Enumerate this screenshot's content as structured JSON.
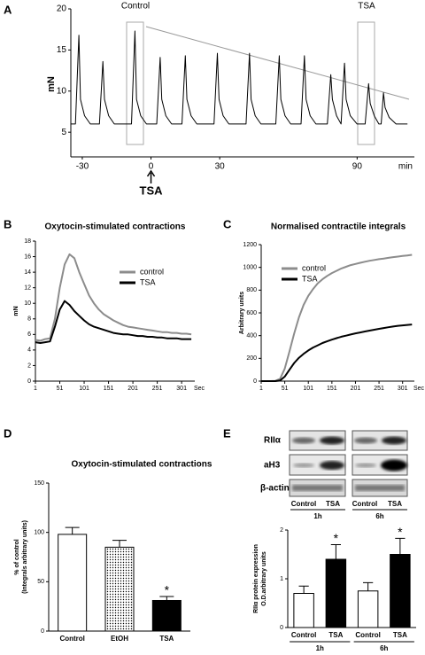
{
  "panels": [
    "A",
    "B",
    "C",
    "D",
    "E"
  ],
  "chart_data": [
    {
      "type": "line",
      "ylabel": "mN",
      "x_unit": "min",
      "annotations": [
        "Control",
        "TSA"
      ],
      "arrow_label": "TSA",
      "xlim": [
        -35,
        115
      ],
      "ylim": [
        2,
        20
      ],
      "xticks": [
        -30,
        0,
        30,
        90
      ],
      "yticks": [
        5,
        10,
        15,
        20
      ],
      "x": [
        -35,
        -33,
        -31.5,
        -30.8,
        -29,
        -26.5,
        -22.5,
        -21,
        -20.3,
        -18.5,
        -16,
        -8.5,
        -7,
        -6.3,
        -4.5,
        -2,
        2.5,
        4,
        4.7,
        6.5,
        9,
        13.5,
        15,
        15.7,
        17.5,
        20,
        27.5,
        29,
        29.7,
        31.5,
        34,
        41.5,
        43,
        43.7,
        45.5,
        48,
        54.5,
        56,
        56.7,
        58.5,
        61,
        65.5,
        67,
        67.7,
        69.5,
        72,
        77,
        78.5,
        79.2,
        81,
        83,
        84.5,
        85.2,
        87,
        90,
        93.5,
        95,
        95.7,
        97.5,
        99.5,
        100.5,
        101.5,
        102.2,
        104,
        107,
        112
      ],
      "series": [
        {
          "color": "#000000",
          "values": [
            6,
            6,
            16.8,
            9,
            7,
            6,
            6,
            13.6,
            9,
            7,
            6,
            6,
            17.3,
            9,
            7,
            6,
            6,
            14.1,
            9,
            7,
            6,
            6,
            14.3,
            9,
            7,
            6,
            6,
            14.6,
            9,
            7,
            6,
            6,
            14.6,
            9,
            7,
            6,
            6,
            14.3,
            9,
            7,
            6,
            6,
            14.3,
            9,
            7,
            6,
            6,
            12,
            9,
            7,
            6,
            13.4,
            9,
            7,
            6,
            6,
            10.9,
            8.5,
            7,
            6,
            6,
            9.8,
            8,
            6.8,
            6,
            6
          ]
        }
      ]
    },
    {
      "type": "line",
      "title": "Oxytocin-stimulated contractions",
      "ylabel": "mN",
      "x_unit": "Sec",
      "xlim": [
        1,
        328
      ],
      "ylim": [
        0,
        18
      ],
      "xticks": [
        1,
        51,
        101,
        151,
        201,
        251,
        301
      ],
      "yticks": [
        0,
        2,
        4,
        6,
        8,
        10,
        12,
        14,
        16,
        18
      ],
      "x": [
        1,
        11,
        21,
        31,
        41,
        51,
        61,
        71,
        81,
        91,
        101,
        111,
        121,
        131,
        141,
        151,
        161,
        171,
        181,
        191,
        201,
        211,
        221,
        231,
        241,
        251,
        261,
        271,
        281,
        291,
        301,
        311,
        321
      ],
      "series": [
        {
          "name": "control",
          "color": "#8c8c8c",
          "values": [
            5.3,
            5.2,
            5.4,
            5.5,
            8,
            12,
            15,
            16.3,
            15.8,
            14,
            12.5,
            11,
            10,
            9.2,
            8.6,
            8.2,
            7.8,
            7.5,
            7.2,
            7,
            6.9,
            6.8,
            6.7,
            6.6,
            6.5,
            6.4,
            6.3,
            6.3,
            6.2,
            6.2,
            6.1,
            6.1,
            6.0
          ]
        },
        {
          "name": "TSA",
          "color": "#000000",
          "values": [
            5,
            4.9,
            5,
            5.1,
            7,
            9.2,
            10.3,
            9.8,
            9,
            8.4,
            7.8,
            7.3,
            7,
            6.8,
            6.6,
            6.4,
            6.2,
            6.1,
            6,
            6,
            5.9,
            5.8,
            5.8,
            5.7,
            5.7,
            5.6,
            5.6,
            5.5,
            5.5,
            5.5,
            5.4,
            5.4,
            5.4
          ]
        }
      ]
    },
    {
      "type": "line",
      "title": "Normalised contractile integrals",
      "ylabel": "Arbitrary units",
      "x_unit": "Sec",
      "xlim": [
        1,
        326
      ],
      "ylim": [
        0,
        1200
      ],
      "xticks": [
        1,
        51,
        101,
        151,
        201,
        251,
        301
      ],
      "yticks": [
        0,
        200,
        400,
        600,
        800,
        1000,
        1200
      ],
      "x": [
        1,
        11,
        21,
        31,
        41,
        51,
        61,
        71,
        81,
        91,
        101,
        111,
        121,
        131,
        141,
        151,
        161,
        171,
        181,
        191,
        201,
        211,
        221,
        231,
        241,
        251,
        261,
        271,
        281,
        291,
        301,
        311,
        321
      ],
      "series": [
        {
          "name": "control",
          "color": "#8c8c8c",
          "values": [
            0,
            0,
            0,
            2,
            20,
            110,
            260,
            420,
            560,
            670,
            750,
            810,
            860,
            895,
            925,
            950,
            970,
            990,
            1005,
            1020,
            1030,
            1040,
            1050,
            1058,
            1065,
            1072,
            1078,
            1084,
            1090,
            1095,
            1100,
            1105,
            1110
          ]
        },
        {
          "name": "TSA",
          "color": "#000000",
          "values": [
            0,
            0,
            0,
            0,
            5,
            40,
            100,
            160,
            205,
            240,
            270,
            295,
            315,
            335,
            350,
            365,
            378,
            390,
            400,
            410,
            420,
            428,
            436,
            444,
            452,
            460,
            467,
            474,
            480,
            486,
            490,
            494,
            498
          ]
        }
      ]
    },
    {
      "type": "bar",
      "title": "Oxytocin-stimulated contractions",
      "ylabel": [
        "% of control",
        "(Integrals arbitrary units)"
      ],
      "categories": [
        "Control",
        "EtOH",
        "TSA"
      ],
      "values": [
        98,
        85,
        31
      ],
      "errors": [
        7,
        7,
        4
      ],
      "significance": [
        null,
        null,
        "*"
      ],
      "colors": [
        "#ffffff",
        "#ffffff",
        "#000000"
      ],
      "hatch": [
        null,
        "dots",
        null
      ],
      "ylim": [
        0,
        150
      ],
      "yticks": [
        0,
        50,
        100,
        150
      ]
    },
    {
      "type": "bar",
      "ylabel": [
        "RIIα  protein expression",
        "O.D.arbitrary units"
      ],
      "categories": [
        "Control",
        "TSA",
        "Control",
        "TSA"
      ],
      "groups": [
        "1h",
        "6h"
      ],
      "values": [
        0.7,
        1.4,
        0.75,
        1.5
      ],
      "errors": [
        0.15,
        0.3,
        0.17,
        0.33
      ],
      "significance": [
        null,
        "*",
        null,
        "*"
      ],
      "colors": [
        "#ffffff",
        "#000000",
        "#ffffff",
        "#000000"
      ],
      "hatch": [
        null,
        null,
        null,
        null
      ],
      "ylim": [
        0,
        2
      ],
      "yticks": [
        0,
        1,
        2
      ]
    }
  ],
  "blot": {
    "rows": [
      "RIIα",
      "aH3",
      "β-actin"
    ],
    "lanes": [
      "Control",
      "TSA",
      "Control",
      "TSA"
    ],
    "groups": [
      "1h",
      "6h"
    ]
  }
}
